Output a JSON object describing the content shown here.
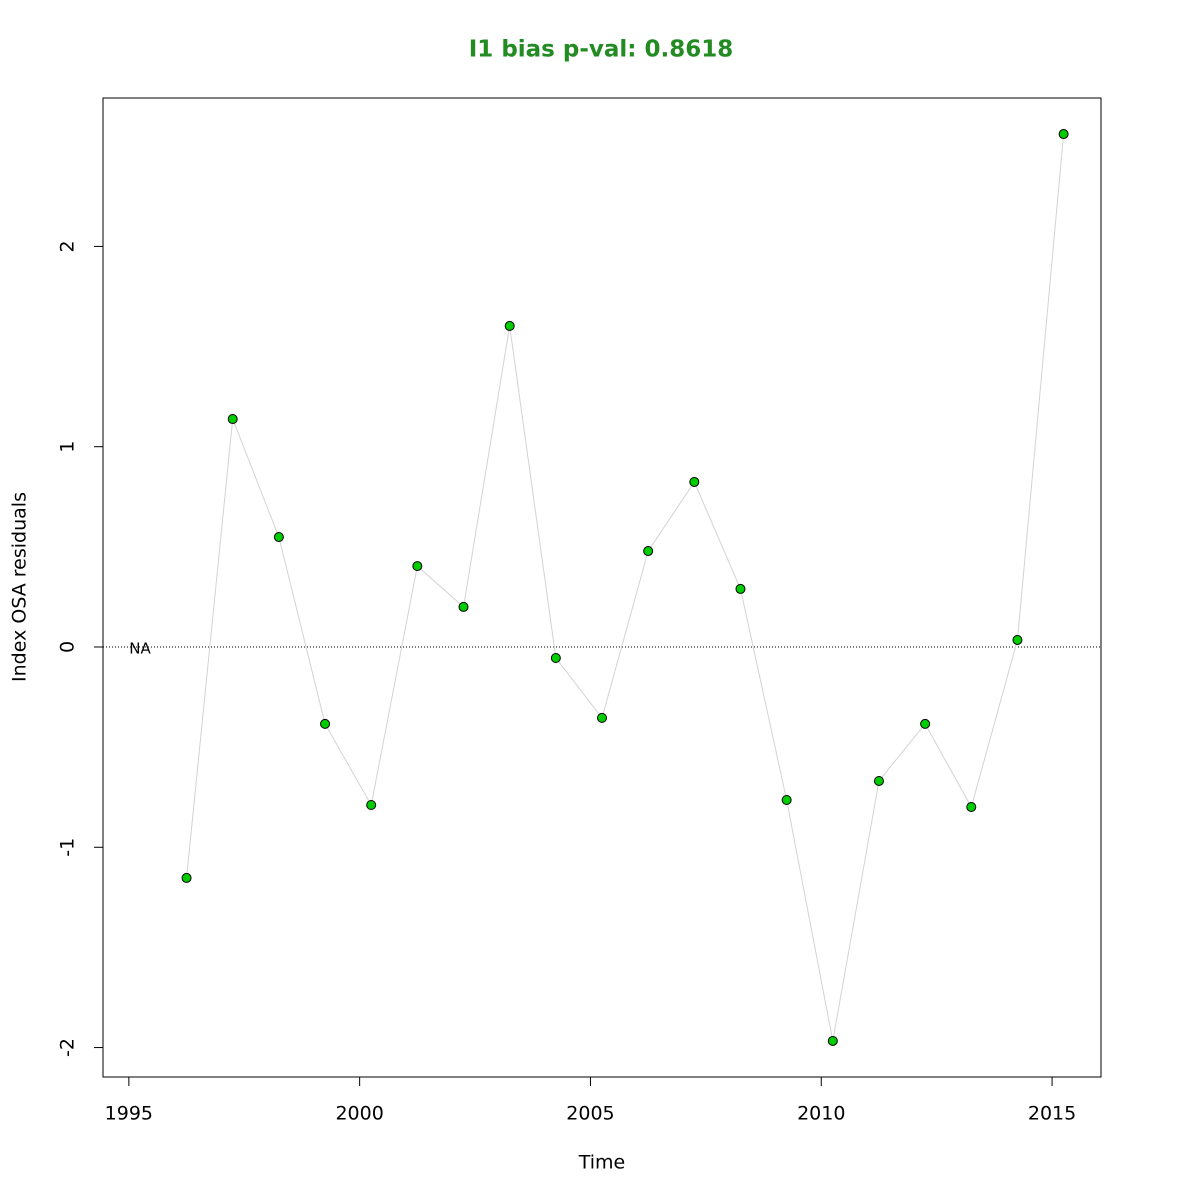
{
  "chart_data": {
    "type": "line",
    "title": "I1 bias p-val: 0.8618",
    "title_color": "#228b22",
    "x_label": "Time",
    "y_label": "Index OSA residuals",
    "annotation": "NA",
    "reference_line": 0,
    "x": [
      1996.25,
      1997.25,
      1998.25,
      1999.25,
      2000.25,
      2001.25,
      2002.25,
      2003.25,
      2004.25,
      2005.25,
      2006.25,
      2007.25,
      2008.25,
      2009.25,
      2010.25,
      2011.25,
      2012.25,
      2013.25,
      2014.25,
      2015.25
    ],
    "series": [
      {
        "name": "I1",
        "color": "#00cd00",
        "line_color": "#d3d3d3",
        "values": [
          -1.153,
          1.138,
          0.549,
          -0.384,
          -0.789,
          0.404,
          0.2,
          1.603,
          -0.055,
          -0.354,
          0.479,
          0.824,
          0.29,
          -0.764,
          -1.967,
          -0.669,
          -0.384,
          -0.799,
          0.035,
          2.561
        ]
      }
    ],
    "xlim": [
      1994.44,
      2016.06
    ],
    "ylim": [
      -2.147,
      2.741
    ],
    "xticks": [
      1995,
      2000,
      2005,
      2010,
      2015
    ],
    "yticks": [
      -2,
      -1,
      0,
      1,
      2
    ]
  }
}
